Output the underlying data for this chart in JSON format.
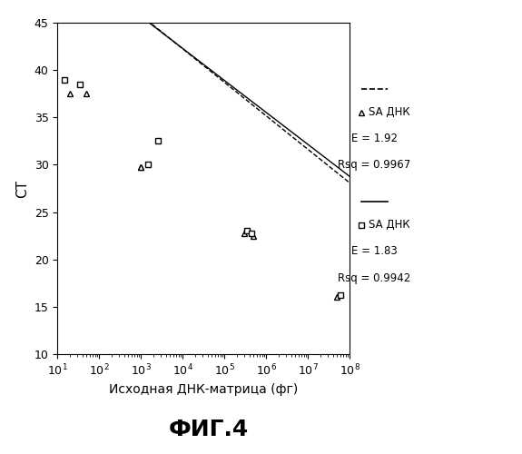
{
  "title": "ФИГ.4",
  "xlabel": "Исходная ДНК-матрица (фг)",
  "ylabel": "СТ",
  "xlim": [
    10.0,
    100000000.0
  ],
  "ylim": [
    10,
    45
  ],
  "yticks": [
    10,
    15,
    20,
    25,
    30,
    35,
    40,
    45
  ],
  "series1": {
    "x": [
      20,
      50,
      1000,
      1000,
      300000,
      500000,
      50000000
    ],
    "y": [
      37.5,
      37.5,
      29.8,
      29.8,
      22.8,
      22.5,
      16.0
    ],
    "marker": "^",
    "color": "black",
    "label": "SA ДНК",
    "E": "1.92",
    "Rsq": "0.9967",
    "slope": -3.54,
    "intercept": 56.4
  },
  "series2": {
    "x": [
      15,
      35,
      1500,
      2500,
      350000,
      450000,
      60000000
    ],
    "y": [
      39.0,
      38.5,
      30.0,
      32.5,
      23.0,
      22.8,
      16.2
    ],
    "marker": "s",
    "color": "black",
    "label": "SA ДНК",
    "E": "1.83",
    "Rsq": "0.9942",
    "slope": -3.38,
    "intercept": 55.8
  },
  "background_color": "#ffffff",
  "fig_width": 5.75,
  "fig_height": 5.0,
  "dpi": 100
}
